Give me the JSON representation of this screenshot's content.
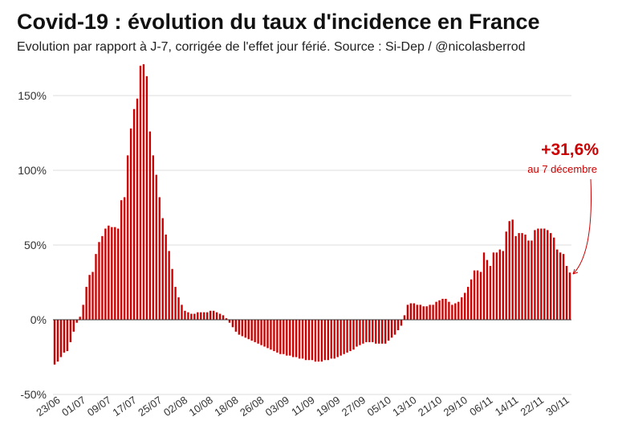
{
  "chart_data": {
    "type": "bar",
    "title": "Covid-19 : évolution du taux d'incidence en France",
    "subtitle": "Evolution par rapport à J-7, corrigée de l'effet jour férié. Source : Si-Dep  / @nicolasberrod",
    "xlabel": "",
    "ylabel": "",
    "ylim": [
      -50,
      170
    ],
    "yticks": [
      -50,
      0,
      50,
      100,
      150
    ],
    "ytick_labels": [
      "-50%",
      "0%",
      "50%",
      "100%",
      "150%"
    ],
    "grid": true,
    "color": "#cc0000",
    "start_date": "23/06",
    "xtick_labels": [
      "23/06",
      "01/07",
      "09/07",
      "17/07",
      "25/07",
      "02/08",
      "10/08",
      "18/08",
      "26/08",
      "03/09",
      "11/09",
      "19/09",
      "27/09",
      "05/10",
      "13/10",
      "21/10",
      "29/10",
      "06/11",
      "14/11",
      "22/11",
      "30/11"
    ],
    "values": [
      -30,
      -28,
      -25,
      -22,
      -21,
      -15,
      -8,
      -2,
      2,
      10,
      22,
      30,
      32,
      44,
      52,
      56,
      61,
      63,
      62,
      62,
      61,
      80,
      82,
      110,
      128,
      141,
      148,
      170,
      171,
      163,
      126,
      110,
      97,
      82,
      68,
      57,
      46,
      34,
      22,
      15,
      10,
      6,
      5,
      4,
      4,
      5,
      5,
      5,
      5,
      6,
      6,
      5,
      4,
      3,
      1,
      -2,
      -5,
      -8,
      -10,
      -11,
      -12,
      -13,
      -14,
      -15,
      -16,
      -17,
      -18,
      -19,
      -20,
      -21,
      -22,
      -23,
      -23,
      -24,
      -24,
      -25,
      -25,
      -26,
      -26,
      -27,
      -27,
      -27,
      -28,
      -28,
      -28,
      -27,
      -27,
      -26,
      -26,
      -25,
      -24,
      -23,
      -22,
      -21,
      -20,
      -18,
      -17,
      -16,
      -15,
      -15,
      -15,
      -16,
      -16,
      -16,
      -16,
      -14,
      -12,
      -10,
      -7,
      -4,
      3,
      10,
      11,
      11,
      10,
      10,
      9,
      9,
      10,
      10,
      12,
      13,
      14,
      14,
      12,
      10,
      11,
      12,
      15,
      18,
      22,
      27,
      33,
      33,
      32,
      45,
      40,
      36,
      45,
      45,
      47,
      46,
      59,
      66,
      67,
      56,
      58,
      58,
      57,
      53,
      53,
      60,
      61,
      61,
      61,
      60,
      58,
      55,
      47,
      45,
      44,
      36,
      31.6
    ],
    "annotation": {
      "value": "+31,6%",
      "label": "au 7 décembre"
    }
  }
}
